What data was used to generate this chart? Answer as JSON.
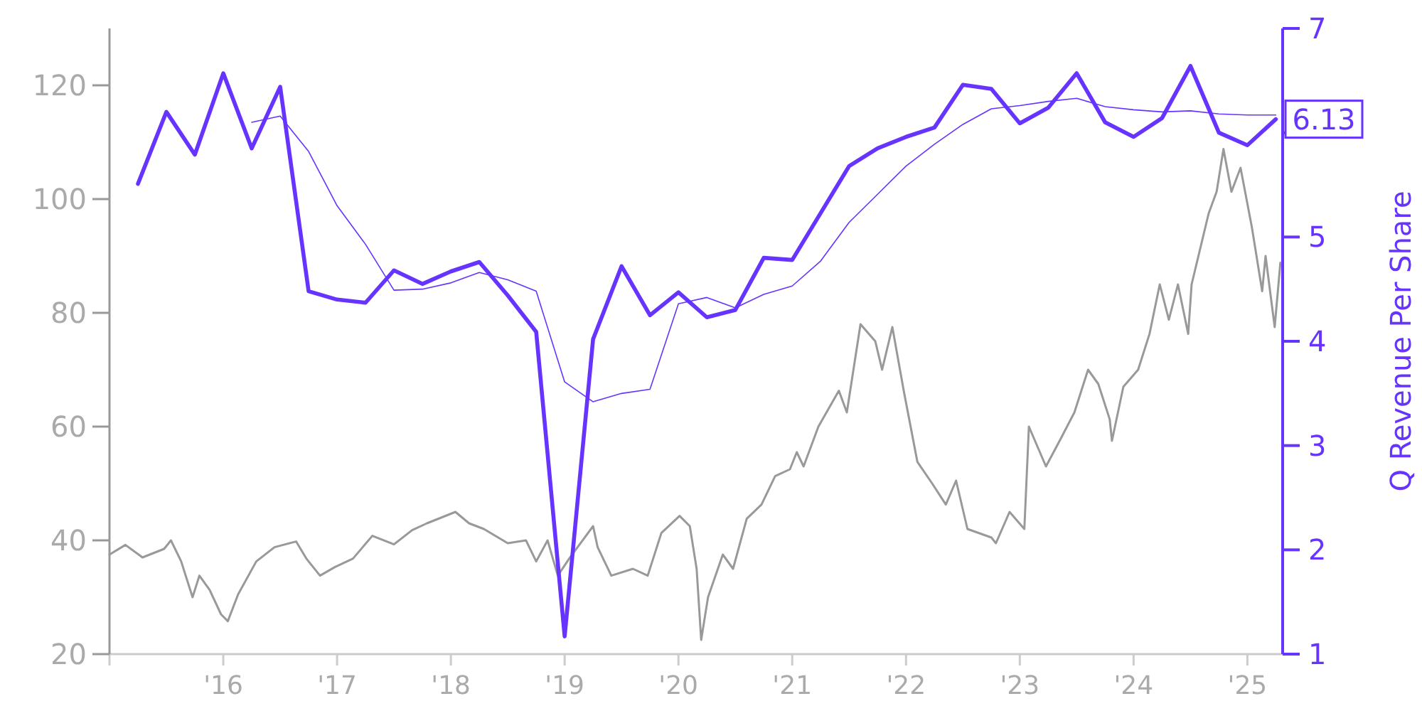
{
  "chart_data": {
    "type": "line",
    "y2label": "Q Revenue Per Share",
    "grid": false,
    "xlim": [
      2015,
      2025.31
    ],
    "xticks": [
      {
        "value": 2015,
        "label": null
      },
      {
        "value": 2016,
        "label": "'16"
      },
      {
        "value": 2017,
        "label": "'17"
      },
      {
        "value": 2018,
        "label": "'18"
      },
      {
        "value": 2019,
        "label": "'19"
      },
      {
        "value": 2020,
        "label": "'20"
      },
      {
        "value": 2021,
        "label": "'21"
      },
      {
        "value": 2022,
        "label": "'22"
      },
      {
        "value": 2023,
        "label": "'23"
      },
      {
        "value": 2024,
        "label": "'24"
      },
      {
        "value": 2025,
        "label": "'25"
      }
    ],
    "ylim": [
      20,
      130
    ],
    "yticks": [
      20,
      40,
      60,
      80,
      100,
      120
    ],
    "y2lim": [
      1,
      7
    ],
    "y2ticks": [
      1,
      2,
      3,
      4,
      5,
      {
        "value": 6,
        "label": null
      },
      7
    ],
    "series": [
      {
        "color": "#999999",
        "x": [
          2015.0,
          2015.14,
          2015.29,
          2015.48,
          2015.54,
          2015.63,
          2015.73,
          2015.79,
          2015.88,
          2015.98,
          2016.04,
          2016.13,
          2016.29,
          2016.45,
          2016.64,
          2016.73,
          2016.85,
          2016.98,
          2017.14,
          2017.31,
          2017.5,
          2017.66,
          2017.79,
          2018.04,
          2018.16,
          2018.29,
          2018.5,
          2018.66,
          2018.75,
          2018.85,
          2018.94,
          2019.04,
          2019.25,
          2019.29,
          2019.41,
          2019.6,
          2019.73,
          2019.85,
          2020.01,
          2020.1,
          2020.16,
          2020.2,
          2020.26,
          2020.39,
          2020.48,
          2020.6,
          2020.73,
          2020.85,
          2020.98,
          2021.04,
          2021.1,
          2021.23,
          2021.41,
          2021.48,
          2021.6,
          2021.73,
          2021.79,
          2021.88,
          2021.98,
          2022.1,
          2022.23,
          2022.35,
          2022.44,
          2022.54,
          2022.75,
          2022.79,
          2022.91,
          2023.04,
          2023.08,
          2023.23,
          2023.35,
          2023.48,
          2023.6,
          2023.69,
          2023.79,
          2023.81,
          2023.91,
          2024.04,
          2024.14,
          2024.23,
          2024.31,
          2024.39,
          2024.48,
          2024.51,
          2024.66,
          2024.73,
          2024.79,
          2024.86,
          2024.94,
          2025.04,
          2025.13,
          2025.16,
          2025.24,
          2025.29
        ],
        "values": [
          37.5,
          39.2,
          37,
          38.5,
          40,
          36.3,
          30,
          33.8,
          31.3,
          27,
          25.8,
          30.5,
          36.3,
          38.8,
          39.8,
          36.8,
          33.8,
          35.3,
          36.8,
          40.8,
          39.3,
          41.8,
          43,
          45,
          43,
          42,
          39.5,
          40,
          36.3,
          40,
          33.8,
          36.8,
          42.5,
          38.8,
          33.8,
          35,
          33.8,
          41.3,
          44.3,
          42.5,
          35,
          22.5,
          30,
          37.5,
          35,
          43.8,
          46.3,
          51.3,
          52.5,
          55.5,
          53,
          60,
          66.3,
          62.5,
          78,
          75,
          70,
          77.5,
          66.3,
          53.8,
          50,
          46.3,
          50.5,
          42,
          40.5,
          39.5,
          45,
          42,
          60,
          53,
          57.5,
          62.5,
          70,
          67.5,
          61.3,
          57.5,
          67,
          70,
          76.3,
          85,
          78.8,
          85,
          76.3,
          85,
          97.5,
          101.3,
          108.8,
          101.3,
          105.5,
          95,
          83.8,
          90,
          77.5,
          88.8
        ]
      },
      {
        "color": "#6633ff",
        "axis": "y2",
        "x": [
          2015.25,
          2015.5,
          2015.75,
          2016.0,
          2016.25,
          2016.5,
          2016.75,
          2017.0,
          2017.25,
          2017.5,
          2017.75,
          2018.0,
          2018.25,
          2018.5,
          2018.75,
          2019.0,
          2019.25,
          2019.5,
          2019.75,
          2020.0,
          2020.25,
          2020.5,
          2020.75,
          2021.0,
          2021.25,
          2021.5,
          2021.75,
          2022.0,
          2022.25,
          2022.5,
          2022.75,
          2023.0,
          2023.25,
          2023.5,
          2023.75,
          2024.0,
          2024.25,
          2024.5,
          2024.75,
          2025.0,
          2025.25
        ],
        "values": [
          5.51,
          6.2,
          5.79,
          6.57,
          5.85,
          6.44,
          4.48,
          4.4,
          4.37,
          4.68,
          4.55,
          4.67,
          4.76,
          4.44,
          4.09,
          1.17,
          4.02,
          4.72,
          4.25,
          4.47,
          4.23,
          4.3,
          4.8,
          4.78,
          5.23,
          5.68,
          5.85,
          5.96,
          6.05,
          6.46,
          6.42,
          6.09,
          6.24,
          6.57,
          6.1,
          5.96,
          6.14,
          6.64,
          6.0,
          5.88,
          6.13
        ],
        "value_labels": [
          null,
          null,
          null,
          null,
          null,
          null,
          null,
          null,
          null,
          null,
          null,
          null,
          null,
          null,
          null,
          null,
          null,
          null,
          null,
          null,
          null,
          null,
          null,
          null,
          null,
          null,
          null,
          null,
          null,
          null,
          null,
          null,
          null,
          null,
          null,
          null,
          null,
          null,
          null,
          null,
          "6.13"
        ]
      },
      {
        "color": "#6633ff",
        "axis": "y2",
        "x": [
          2016.25,
          2016.5,
          2016.75,
          2017.0,
          2017.25,
          2017.5,
          2017.75,
          2018.0,
          2018.25,
          2018.5,
          2018.75,
          2019.0,
          2019.25,
          2019.5,
          2019.75,
          2020.0,
          2020.25,
          2020.5,
          2020.75,
          2021.0,
          2021.25,
          2021.5,
          2021.75,
          2022.0,
          2022.25,
          2022.5,
          2022.75,
          2023.0,
          2023.25,
          2023.5,
          2023.75,
          2024.0,
          2024.25,
          2024.5,
          2024.75,
          2025.0,
          2025.25
        ],
        "values": [
          6.1,
          6.16,
          5.82,
          5.3,
          4.93,
          4.49,
          4.5,
          4.56,
          4.66,
          4.59,
          4.48,
          3.61,
          3.42,
          3.5,
          3.54,
          4.36,
          4.42,
          4.32,
          4.45,
          4.53,
          4.77,
          5.14,
          5.41,
          5.68,
          5.89,
          6.08,
          6.23,
          6.26,
          6.3,
          6.33,
          6.25,
          6.22,
          6.2,
          6.21,
          6.18,
          6.17,
          6.17
        ]
      }
    ]
  }
}
